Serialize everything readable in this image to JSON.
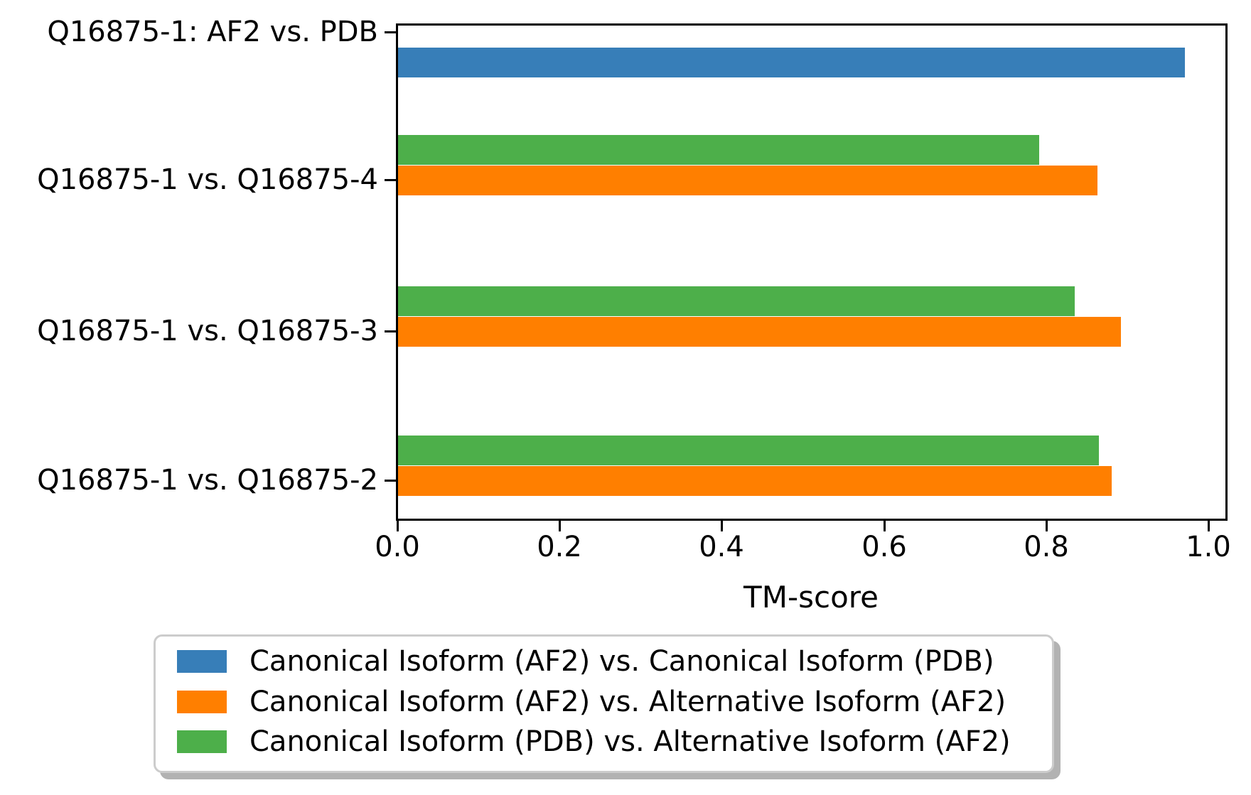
{
  "chart_data": {
    "type": "bar",
    "orientation": "horizontal",
    "title": "",
    "xlabel": "TM-score",
    "ylabel": "",
    "categories": [
      "Q16875-1: AF2 vs. PDB",
      "Q16875-1 vs. Q16875-4",
      "Q16875-1 vs. Q16875-3",
      "Q16875-1 vs. Q16875-2"
    ],
    "series": [
      {
        "name": "Canonical Isoform (AF2) vs. Canonical Isoform (PDB)",
        "color": "#377eb8",
        "values": [
          0.971,
          null,
          null,
          null
        ]
      },
      {
        "name": "Canonical Isoform (AF2) vs. Alternative Isoform (AF2)",
        "color": "#ff7f00",
        "values": [
          null,
          0.863,
          0.892,
          0.881
        ]
      },
      {
        "name": "Canonical Isoform (PDB) vs. Alternative Isoform (AF2)",
        "color": "#4daf4a",
        "values": [
          null,
          0.791,
          0.835,
          0.865
        ]
      }
    ],
    "x_ticks": [
      "0.0",
      "0.2",
      "0.4",
      "0.6",
      "0.8",
      "1.0"
    ],
    "xlim": [
      0.0,
      1.02
    ],
    "grid": false,
    "legend_position": "bottom",
    "colors": {
      "spine": "#000000",
      "background": "#ffffff",
      "legend_edge": "#cccccc",
      "legend_shadow": "#b2b2b2"
    }
  }
}
